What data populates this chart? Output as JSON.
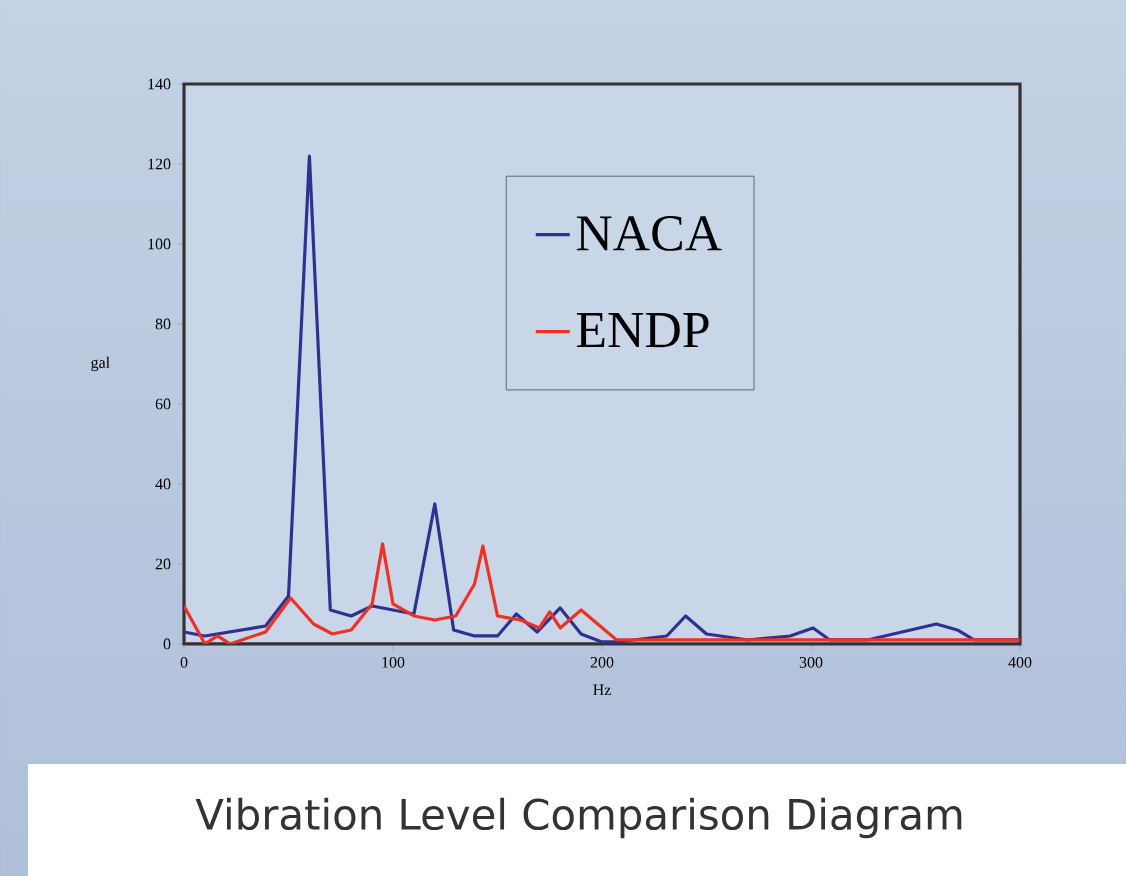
{
  "chart_data": {
    "type": "line",
    "title": "Vibration Level Comparison Diagram",
    "xlabel": "Hz",
    "ylabel": "gal",
    "xlim": [
      0,
      400
    ],
    "xticks": [
      0,
      100,
      200,
      300,
      400
    ],
    "ylim": [
      0,
      140
    ],
    "yticks": [
      0,
      20,
      40,
      60,
      80,
      100,
      120,
      140
    ],
    "legend": "top right",
    "grid": false,
    "marker": "none",
    "line_style": "solid",
    "series": [
      {
        "name": "NACA",
        "color": "#2e3192",
        "x": [
          0,
          10,
          39,
          50,
          60,
          70,
          80,
          90,
          110,
          120,
          129,
          139,
          150,
          159,
          169,
          180,
          190,
          200,
          207,
          231,
          240,
          250,
          270,
          290,
          301,
          309,
          327,
          360,
          370,
          378,
          400
        ],
        "values": [
          3,
          2,
          4.5,
          12,
          122,
          8.5,
          7,
          9.5,
          7.5,
          35,
          3.5,
          2,
          2,
          7.5,
          3,
          9,
          2.5,
          0.5,
          0.5,
          2,
          7,
          2.5,
          1,
          2,
          4,
          1,
          1,
          5,
          3.5,
          1,
          1
        ]
      },
      {
        "name": "ENDP",
        "color": "#ee3124",
        "x": [
          0,
          10,
          16,
          22,
          39,
          51,
          62,
          71,
          80,
          90,
          95,
          100,
          110,
          120,
          130,
          139,
          143,
          150,
          161,
          170,
          175,
          180,
          190,
          207,
          250,
          300,
          350,
          400
        ],
        "values": [
          9.5,
          0,
          2,
          0,
          3,
          11.5,
          5,
          2.5,
          3.5,
          10,
          25,
          10,
          7,
          6,
          7,
          15,
          24.5,
          7,
          6,
          4,
          8,
          4,
          8.5,
          1,
          1,
          1,
          1,
          1
        ]
      }
    ]
  }
}
